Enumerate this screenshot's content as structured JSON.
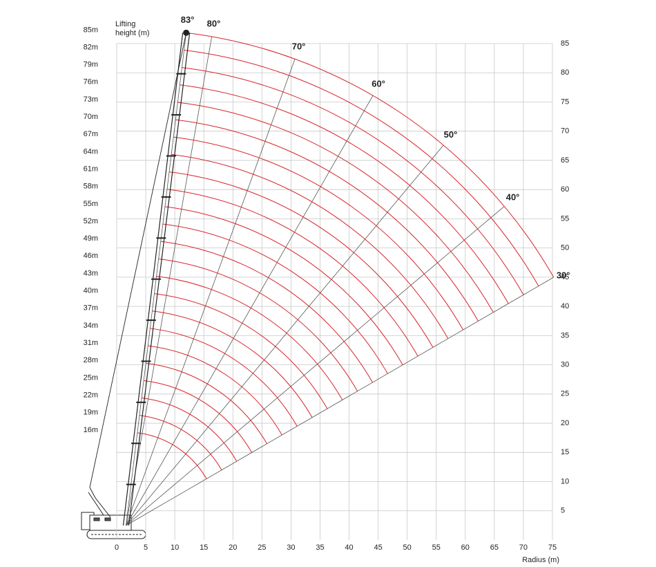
{
  "chart_data": {
    "type": "working-range",
    "ylabel": "Lifting height (m)",
    "xlabel": "Radius (m)",
    "xlim": [
      0,
      75
    ],
    "ylim": [
      0,
      85
    ],
    "xticks": [
      0,
      5,
      10,
      15,
      20,
      25,
      30,
      35,
      40,
      45,
      50,
      55,
      60,
      65,
      70,
      75
    ],
    "yticks": [
      5,
      10,
      15,
      20,
      25,
      30,
      35,
      40,
      45,
      50,
      55,
      60,
      65,
      70,
      75,
      80,
      85
    ],
    "grid": true,
    "arc_color": "#d8232a",
    "boom_lengths": [
      {
        "value": 85,
        "label": "85m"
      },
      {
        "value": 82,
        "label": "82m"
      },
      {
        "value": 79,
        "label": "79m"
      },
      {
        "value": 76,
        "label": "76m"
      },
      {
        "value": 73,
        "label": "73m"
      },
      {
        "value": 70,
        "label": "70m"
      },
      {
        "value": 67,
        "label": "67m"
      },
      {
        "value": 64,
        "label": "64m"
      },
      {
        "value": 61,
        "label": "61m"
      },
      {
        "value": 58,
        "label": "58m"
      },
      {
        "value": 55,
        "label": "55m"
      },
      {
        "value": 52,
        "label": "52m"
      },
      {
        "value": 49,
        "label": "49m"
      },
      {
        "value": 46,
        "label": "46m"
      },
      {
        "value": 43,
        "label": "43m"
      },
      {
        "value": 40,
        "label": "40m"
      },
      {
        "value": 37,
        "label": "37m"
      },
      {
        "value": 34,
        "label": "34m"
      },
      {
        "value": 31,
        "label": "31m"
      },
      {
        "value": 28,
        "label": "28m"
      },
      {
        "value": 25,
        "label": "25m"
      },
      {
        "value": 22,
        "label": "22m"
      },
      {
        "value": 19,
        "label": "19m"
      },
      {
        "value": 16,
        "label": "16m"
      }
    ],
    "angles": [
      {
        "value": 83,
        "label": "83°"
      },
      {
        "value": 80,
        "label": "80°"
      },
      {
        "value": 70,
        "label": "70°"
      },
      {
        "value": 60,
        "label": "60°"
      },
      {
        "value": 50,
        "label": "50°"
      },
      {
        "value": 40,
        "label": "40°"
      },
      {
        "value": 30,
        "label": "30°"
      }
    ]
  }
}
